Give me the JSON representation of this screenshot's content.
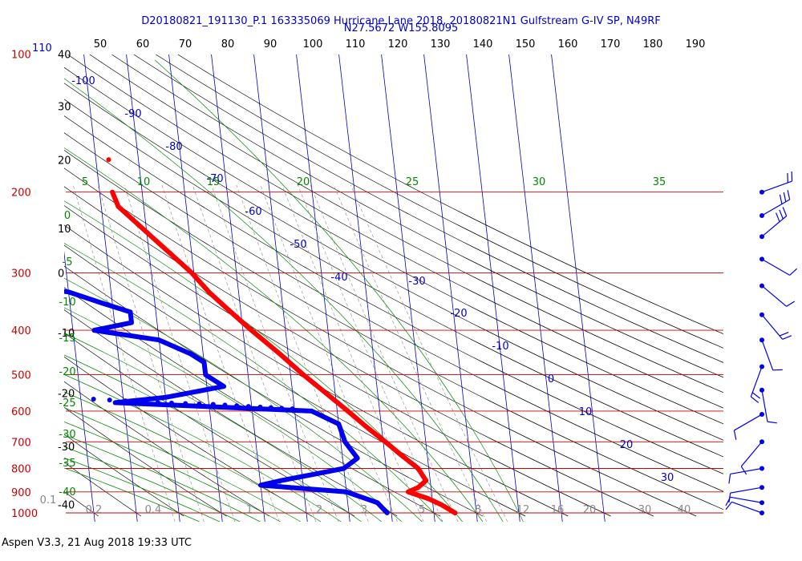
{
  "header": {
    "line1": "D20180821_191130_P.1 163335069 Hurricane Lane 2018, 20180821N1 Gulfstream G-IV SP, N49RF",
    "line2": "N27.5672 W155.8095"
  },
  "footer": "Aspen V3.3, 21 Aug 2018  19:33 UTC",
  "colors": {
    "temperature": "#ff0000",
    "dewpoint": "#0000ee",
    "isobar": "#cc0000",
    "isotherm": "#0000cc",
    "dry_adiabat": "#000000",
    "moist_adiabat": "#008800",
    "mixing_ratio": "#888888",
    "wind_barb": "#0000ee"
  },
  "chart_data": {
    "type": "skew-t",
    "x_scale_top": {
      "left_label": "110",
      "values": [
        50,
        60,
        70,
        80,
        90,
        100,
        110,
        120,
        130,
        140,
        150,
        160,
        170,
        180,
        190
      ]
    },
    "y_axis_pressure": {
      "scale": "log",
      "ticks": [
        {
          "value": 100,
          "label": "100"
        },
        {
          "value": 200,
          "label": "200"
        },
        {
          "value": 300,
          "label": "300"
        },
        {
          "value": 400,
          "label": "400"
        },
        {
          "value": 500,
          "label": "500"
        },
        {
          "value": 600,
          "label": "600"
        },
        {
          "value": 700,
          "label": "700"
        },
        {
          "value": 800,
          "label": "800"
        },
        {
          "value": 900,
          "label": "900"
        },
        {
          "value": 1000,
          "label": "1000"
        }
      ]
    },
    "left_temperature_labels": [
      {
        "label": "40",
        "p": 100
      },
      {
        "label": "30",
        "p": 130
      },
      {
        "label": "20",
        "p": 170
      },
      {
        "label": "10",
        "p": 240
      },
      {
        "label": "0",
        "p": 300
      },
      {
        "label": "-10",
        "p": 405
      },
      {
        "label": "-20",
        "p": 548
      },
      {
        "label": "-30",
        "p": 716
      },
      {
        "label": "-40",
        "p": 958
      }
    ],
    "isotherm_labels": [
      {
        "label": "-100",
        "T": -100
      },
      {
        "label": "-90",
        "T": -90
      },
      {
        "label": "-80",
        "T": -80
      },
      {
        "label": "-70",
        "T": -70
      },
      {
        "label": "-60",
        "T": -60
      },
      {
        "label": "-50",
        "T": -50
      },
      {
        "label": "-40",
        "T": -40
      },
      {
        "label": "-30",
        "T": -30
      },
      {
        "label": "-20",
        "T": -20
      },
      {
        "label": "-10",
        "T": -10
      },
      {
        "label": "0",
        "T": 0
      },
      {
        "label": "10",
        "T": 10
      },
      {
        "label": "20",
        "T": 20
      },
      {
        "label": "30",
        "T": 30
      }
    ],
    "moist_adiabat_top_labels": [
      "5",
      "10",
      "15",
      "20",
      "25",
      "30",
      "35"
    ],
    "moist_adiabat_left_labels": [
      "0",
      "-5",
      "-10",
      "-15",
      "-20",
      "-25",
      "-30",
      "-35",
      "-40"
    ],
    "mixing_ratio_labels": [
      "0.1",
      "0.2",
      "0.4",
      "1",
      "2",
      "3",
      "5",
      "8",
      "12",
      "16",
      "20",
      "30",
      "40"
    ],
    "temperature_profile": [
      {
        "p": 200,
        "T": -47
      },
      {
        "p": 215,
        "T": -46
      },
      {
        "p": 250,
        "T": -39
      },
      {
        "p": 300,
        "T": -30.5
      },
      {
        "p": 330,
        "T": -27
      },
      {
        "p": 360,
        "T": -23
      },
      {
        "p": 400,
        "T": -18
      },
      {
        "p": 450,
        "T": -12
      },
      {
        "p": 500,
        "T": -7
      },
      {
        "p": 550,
        "T": -2
      },
      {
        "p": 600,
        "T": 2.5
      },
      {
        "p": 650,
        "T": 6.5
      },
      {
        "p": 700,
        "T": 10.5
      },
      {
        "p": 750,
        "T": 14
      },
      {
        "p": 800,
        "T": 17.5
      },
      {
        "p": 850,
        "T": 19
      },
      {
        "p": 880,
        "T": 17
      },
      {
        "p": 900,
        "T": 14.5
      },
      {
        "p": 930,
        "T": 19
      },
      {
        "p": 960,
        "T": 22
      },
      {
        "p": 1000,
        "T": 25
      }
    ],
    "dewpoint_profile": [
      {
        "p": 228,
        "T": -75
      },
      {
        "p": 250,
        "T": -73
      },
      {
        "p": 280,
        "T": -68
      },
      {
        "p": 310,
        "T": -72
      },
      {
        "p": 315,
        "T": -78
      },
      {
        "p": 330,
        "T": -60
      },
      {
        "p": 350,
        "T": -52
      },
      {
        "p": 365,
        "T": -46
      },
      {
        "p": 385,
        "T": -46
      },
      {
        "p": 400,
        "T": -55
      },
      {
        "p": 420,
        "T": -40
      },
      {
        "p": 450,
        "T": -33
      },
      {
        "p": 470,
        "T": -30
      },
      {
        "p": 500,
        "T": -30
      },
      {
        "p": 530,
        "T": -26
      },
      {
        "p": 560,
        "T": -40
      },
      {
        "p": 575,
        "T": -52
      },
      {
        "p": 600,
        "T": -6
      },
      {
        "p": 640,
        "T": 0
      },
      {
        "p": 700,
        "T": 1
      },
      {
        "p": 760,
        "T": 3.5
      },
      {
        "p": 800,
        "T": 0
      },
      {
        "p": 850,
        "T": -15
      },
      {
        "p": 870,
        "T": -20
      },
      {
        "p": 900,
        "T": 0
      },
      {
        "p": 950,
        "T": 7
      },
      {
        "p": 1000,
        "T": 9
      }
    ],
    "dewpoint_dotted_segment": [
      {
        "p": 565,
        "T": -57
      },
      {
        "p": 575,
        "T": -42
      },
      {
        "p": 580,
        "T": -29
      },
      {
        "p": 588,
        "T": -18
      },
      {
        "p": 595,
        "T": -8
      }
    ],
    "isolated_point": {
      "p": 170,
      "T": -47
    },
    "wind_barbs": [
      {
        "p": 200,
        "dir": 250,
        "speed": 20
      },
      {
        "p": 225,
        "dir": 240,
        "speed": 25
      },
      {
        "p": 250,
        "dir": 230,
        "speed": 25
      },
      {
        "p": 280,
        "dir": 300,
        "speed": 10
      },
      {
        "p": 320,
        "dir": 310,
        "speed": 10
      },
      {
        "p": 370,
        "dir": 320,
        "speed": 15
      },
      {
        "p": 420,
        "dir": 340,
        "speed": 10
      },
      {
        "p": 480,
        "dir": 20,
        "speed": 15
      },
      {
        "p": 540,
        "dir": 350,
        "speed": 10
      },
      {
        "p": 610,
        "dir": 60,
        "speed": 10
      },
      {
        "p": 700,
        "dir": 40,
        "speed": 10
      },
      {
        "p": 800,
        "dir": 80,
        "speed": 10
      },
      {
        "p": 880,
        "dir": 80,
        "speed": 10
      },
      {
        "p": 950,
        "dir": 100,
        "speed": 10
      },
      {
        "p": 1000,
        "dir": 110,
        "speed": 10
      }
    ]
  }
}
